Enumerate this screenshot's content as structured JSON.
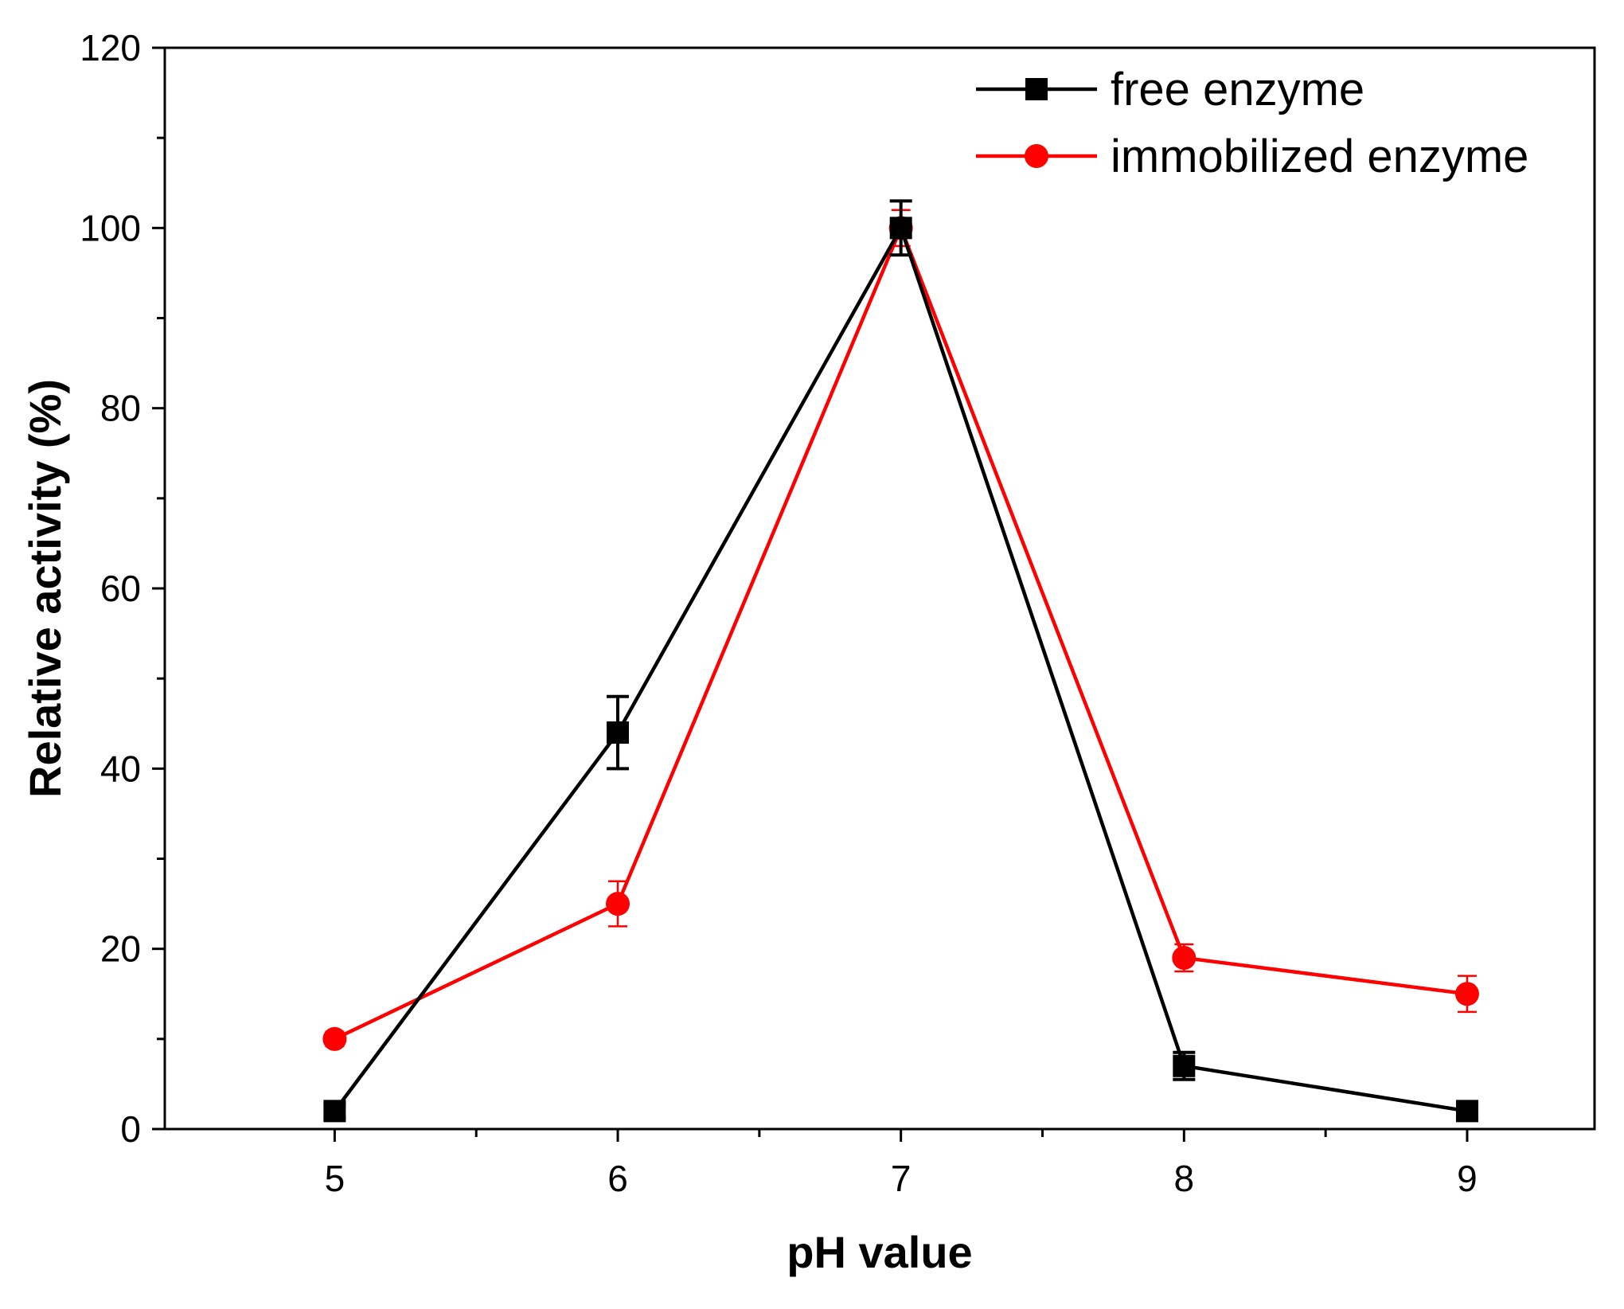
{
  "chart_data": {
    "type": "line",
    "title": "",
    "xlabel": "pH value",
    "ylabel": "Relative activity (%)",
    "xlim": [
      4.4,
      9.45
    ],
    "ylim": [
      0,
      120
    ],
    "x": [
      5,
      6,
      7,
      8,
      9
    ],
    "xticks": [
      5,
      6,
      7,
      8,
      9
    ],
    "xticks_minor": [
      5.5,
      6.5,
      7.5,
      8.5
    ],
    "xtick_labels": [
      "5",
      "6",
      "7",
      "8",
      "9"
    ],
    "yticks": [
      0,
      20,
      40,
      60,
      80,
      100,
      120
    ],
    "yticks_minor": [
      10,
      30,
      50,
      70,
      90,
      110
    ],
    "ytick_labels": [
      "0",
      "20",
      "40",
      "60",
      "80",
      "100",
      "120"
    ],
    "grid": false,
    "legend_position": "top-right",
    "series": [
      {
        "name": "free enzyme",
        "color": "#000000",
        "marker": "square",
        "values": [
          2,
          44,
          100,
          7,
          2
        ],
        "errors": [
          0.8,
          4,
          3,
          1.5,
          0.8
        ]
      },
      {
        "name": "immobilized enzyme",
        "color": "#ff0000",
        "marker": "circle",
        "values": [
          10,
          25,
          100,
          19,
          15
        ],
        "errors": [
          0.8,
          2.5,
          2,
          1.5,
          2
        ]
      }
    ]
  }
}
